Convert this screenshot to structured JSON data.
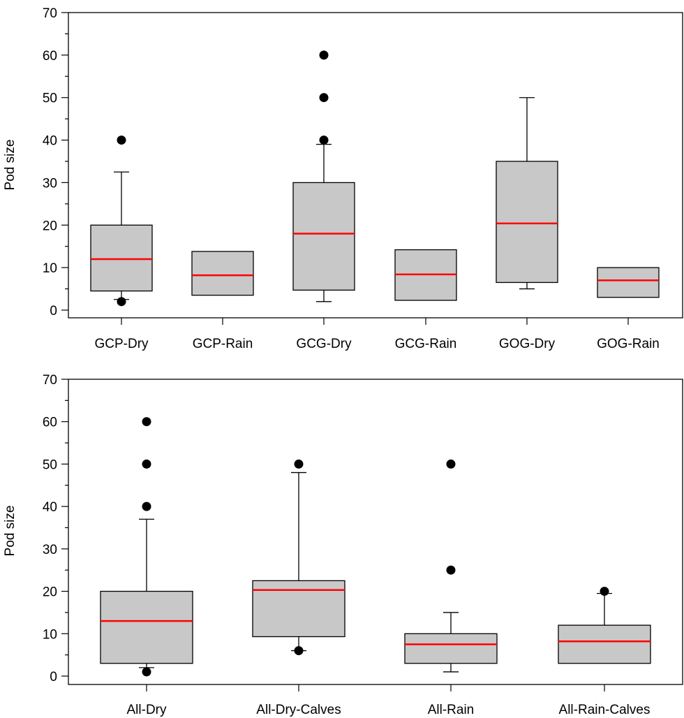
{
  "colors": {
    "box_fill": "#c8c8c8",
    "box_stroke": "#000000",
    "median": "#ff0000",
    "outlier": "#000000"
  },
  "chart_data": [
    {
      "type": "boxplot",
      "ylabel": "Pod size",
      "ylim": [
        0,
        70
      ],
      "y_ticks": [
        "0",
        "10",
        "20",
        "30",
        "40",
        "50",
        "60",
        "70"
      ],
      "categories": [
        "GCP-Dry",
        "GCP-Rain",
        "GCG-Dry",
        "GCG-Rain",
        "GOG-Dry",
        "GOG-Rain"
      ],
      "boxes": [
        {
          "q1": 4.5,
          "median": 12,
          "q3": 20,
          "whisker_low": 2.5,
          "whisker_high": 32.5,
          "outliers": [
            2,
            40
          ]
        },
        {
          "q1": 3.5,
          "median": 8.2,
          "q3": 13.8,
          "whisker_low": null,
          "whisker_high": null,
          "outliers": []
        },
        {
          "q1": 4.7,
          "median": 18,
          "q3": 30,
          "whisker_low": 2,
          "whisker_high": 39,
          "outliers": [
            40,
            50,
            60
          ]
        },
        {
          "q1": 2.3,
          "median": 8.4,
          "q3": 14.2,
          "whisker_low": null,
          "whisker_high": null,
          "outliers": []
        },
        {
          "q1": 6.5,
          "median": 20.4,
          "q3": 35,
          "whisker_low": 5,
          "whisker_high": 50,
          "outliers": []
        },
        {
          "q1": 3,
          "median": 7,
          "q3": 10,
          "whisker_low": null,
          "whisker_high": null,
          "outliers": []
        }
      ]
    },
    {
      "type": "boxplot",
      "ylabel": "Pod size",
      "ylim": [
        0,
        70
      ],
      "y_ticks": [
        "0",
        "10",
        "20",
        "30",
        "40",
        "50",
        "60",
        "70"
      ],
      "categories": [
        "All-Dry",
        "All-Dry-Calves",
        "All-Rain",
        "All-Rain-Calves"
      ],
      "boxes": [
        {
          "q1": 3,
          "median": 13,
          "q3": 20,
          "whisker_low": 2,
          "whisker_high": 37,
          "outliers": [
            1,
            40,
            50,
            60
          ]
        },
        {
          "q1": 9.3,
          "median": 20.3,
          "q3": 22.5,
          "whisker_low": 6,
          "whisker_high": 48,
          "outliers": [
            6,
            50
          ]
        },
        {
          "q1": 3,
          "median": 7.5,
          "q3": 10,
          "whisker_low": 1,
          "whisker_high": 15,
          "outliers": [
            25,
            50
          ]
        },
        {
          "q1": 3,
          "median": 8.2,
          "q3": 12,
          "whisker_low": null,
          "whisker_high": 19.5,
          "outliers": [
            20
          ]
        }
      ]
    }
  ]
}
